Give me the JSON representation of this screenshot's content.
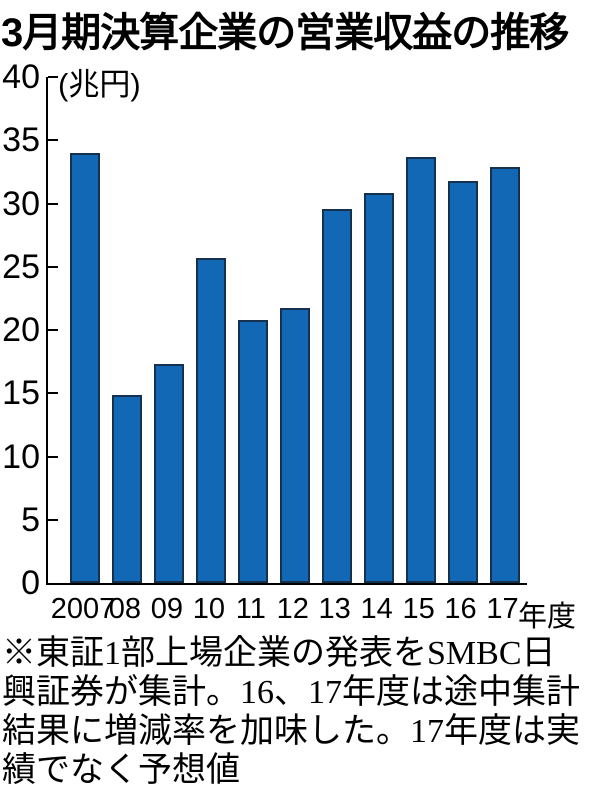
{
  "title": "3月期決算企業の営業収益の推移",
  "chart_data": {
    "type": "bar",
    "title": "3月期決算企業の営業収益の推移",
    "unit_label": "(兆円)",
    "ylabel": "兆円",
    "categories": [
      "2007",
      "08",
      "09",
      "10",
      "11",
      "12",
      "13",
      "14",
      "15",
      "16",
      "17"
    ],
    "x_suffix": "年度",
    "values": [
      34.0,
      14.9,
      17.3,
      25.7,
      20.8,
      21.7,
      29.6,
      30.8,
      33.7,
      31.8,
      32.9
    ],
    "ylim": [
      0,
      40
    ],
    "ytick_step": 5,
    "yticks": [
      0,
      5,
      10,
      15,
      20,
      25,
      30,
      35,
      40
    ],
    "grid": false,
    "legend": false,
    "bar_color": "#1268b4",
    "bar_border_color": "#16314e"
  },
  "footnote": {
    "lines": [
      "※東証1部上場企業の発表をSMBC日",
      "興証券が集計。16、17年度は途中集計",
      "結果に増減率を加味した。17年度は実",
      "績でなく予想値"
    ]
  }
}
